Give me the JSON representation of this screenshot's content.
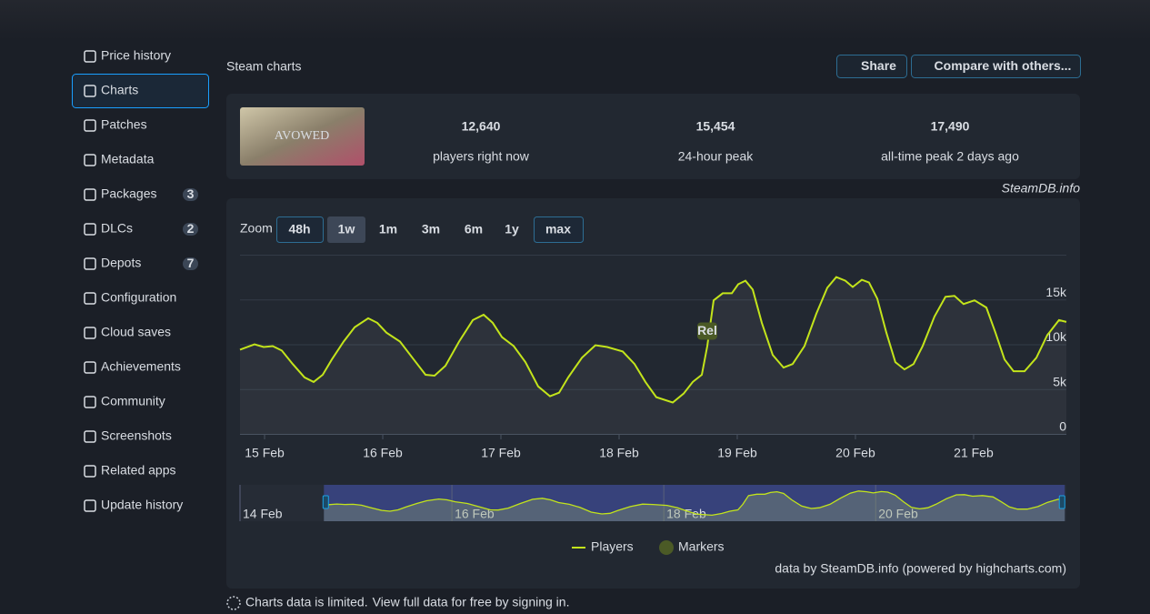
{
  "sidebar": [
    {
      "label": "Price history"
    },
    {
      "label": "Charts",
      "state": "selected"
    },
    {
      "label": "Patches"
    },
    {
      "label": "Metadata"
    },
    {
      "label": "Packages",
      "badge": "3"
    },
    {
      "label": "DLCs",
      "badge": "2"
    },
    {
      "label": "Depots",
      "badge": "7"
    },
    {
      "label": "Configuration"
    },
    {
      "label": "Cloud saves"
    },
    {
      "label": "Achievements"
    },
    {
      "label": "Community"
    },
    {
      "label": "Screenshots"
    },
    {
      "label": "Related apps"
    },
    {
      "label": "Update history"
    }
  ],
  "header": {
    "title": "Steam charts",
    "buttons": [
      "Share",
      "Compare with others..."
    ]
  },
  "stats": {
    "image_text": "AVOWED",
    "items": [
      {
        "value": "12,640",
        "label": "players right now"
      },
      {
        "value": "15,454",
        "label": "24-hour peak"
      },
      {
        "value": "17,490",
        "label": "all-time peak 2 days ago"
      }
    ]
  },
  "watermark": "SteamDB.info",
  "zoom": {
    "label": "Zoom",
    "options": [
      "48h",
      "1w",
      "1m",
      "3m",
      "6m",
      "1y",
      "max"
    ],
    "states": [
      "enabled",
      "selected",
      "disabled",
      "disabled",
      "disabled",
      "disabled",
      "enabled"
    ]
  },
  "chart_data": {
    "type": "line",
    "x": [
      14.792,
      14.915,
      14.992,
      15.069,
      15.146,
      15.238,
      15.338,
      15.415,
      15.492,
      15.569,
      15.669,
      15.762,
      15.877,
      15.954,
      16.031,
      16.146,
      16.262,
      16.362,
      16.438,
      16.531,
      16.646,
      16.762,
      16.854,
      16.931,
      17.008,
      17.108,
      17.208,
      17.315,
      17.415,
      17.492,
      17.569,
      17.685,
      17.8,
      17.9,
      18.031,
      18.131,
      18.223,
      18.315,
      18.454,
      18.546,
      18.623,
      18.7,
      18.746,
      18.8,
      18.877,
      18.954,
      19.008,
      19.069,
      19.131,
      19.208,
      19.3,
      19.392,
      19.469,
      19.569,
      19.669,
      19.762,
      19.838,
      19.915,
      19.977,
      20.054,
      20.115,
      20.185,
      20.262,
      20.338,
      20.415,
      20.492,
      20.569,
      20.669,
      20.762,
      20.838,
      20.915,
      21.008,
      21.108,
      21.185,
      21.262,
      21.338,
      21.431,
      21.531,
      21.623,
      21.723,
      21.785
    ],
    "series": [
      {
        "name": "Players",
        "color": "#c3e41b",
        "values": [
          9400,
          10000,
          9700,
          9800,
          9300,
          7800,
          6300,
          5800,
          6600,
          8300,
          10300,
          11900,
          12900,
          12400,
          11300,
          10300,
          8300,
          6600,
          6500,
          7600,
          10300,
          12700,
          13300,
          12400,
          10800,
          9800,
          8000,
          5300,
          4200,
          4600,
          6300,
          8500,
          9900,
          9700,
          9200,
          7800,
          5800,
          4100,
          3500,
          4500,
          5800,
          6600,
          9800,
          14900,
          15700,
          15700,
          16700,
          17100,
          16100,
          12400,
          8800,
          7400,
          7800,
          9800,
          13400,
          16300,
          17500,
          17100,
          16400,
          17200,
          16900,
          15100,
          11300,
          8000,
          7200,
          7800,
          9800,
          13100,
          15300,
          15400,
          14500,
          14900,
          14100,
          11300,
          8300,
          7000,
          7000,
          8500,
          11000,
          12700,
          12500
        ]
      }
    ],
    "markers": {
      "name": "Markers",
      "color": "#4b5a26",
      "points": [
        {
          "label": "Rel",
          "x": 18.746
        }
      ]
    },
    "xlim": [
      14.792,
      21.785
    ],
    "xticks": [
      {
        "value": 15,
        "label": "15 Feb"
      },
      {
        "value": 16,
        "label": "16 Feb"
      },
      {
        "value": 17,
        "label": "17 Feb"
      },
      {
        "value": 18,
        "label": "18 Feb"
      },
      {
        "value": 19,
        "label": "19 Feb"
      },
      {
        "value": 20,
        "label": "20 Feb"
      },
      {
        "value": 21,
        "label": "21 Feb"
      }
    ],
    "ylim": [
      0,
      20000
    ],
    "yticks": [
      0,
      {
        "value": 5000,
        "label": "5k"
      },
      {
        "value": 10000,
        "label": "10k"
      },
      {
        "value": 15000,
        "label": "15k"
      }
    ],
    "grid": true,
    "legend": "bottom",
    "navigator": {
      "xlim": [
        14.0,
        21.8
      ],
      "ylim": [
        0,
        19000
      ],
      "xticks": [
        {
          "value": 14,
          "label": "14 Feb"
        },
        {
          "value": 16,
          "label": "16 Feb"
        },
        {
          "value": 18,
          "label": "18 Feb"
        },
        {
          "value": 20,
          "label": "20 Feb"
        }
      ]
    },
    "credits": "data by SteamDB.info (powered by highcharts.com)"
  },
  "footer": {
    "notice": "Charts data is limited.",
    "link": "View full data for free by signing in."
  }
}
